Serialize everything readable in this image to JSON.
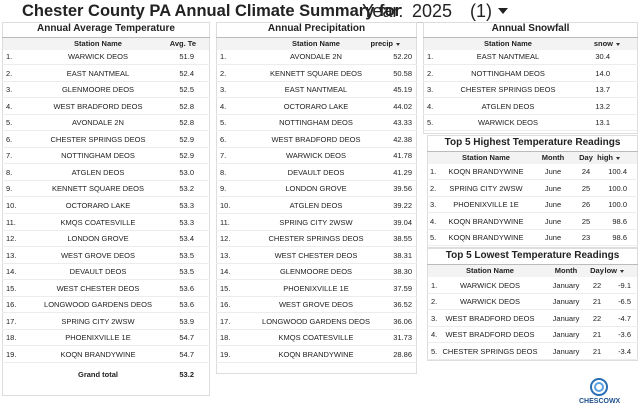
{
  "header": {
    "title": "Chester County PA Annual Climate Summary for",
    "selector_label": "Year:",
    "selector_value": "2025",
    "selector_count": "(1)"
  },
  "tables": [
    {
      "title": "Annual Average Temperature",
      "columns": [
        "Station Name",
        "Avg. Te"
      ],
      "rows": [
        [
          "1.",
          "WARWICK DEOS",
          "51.9"
        ],
        [
          "2.",
          "EAST NANTMEAL",
          "52.4"
        ],
        [
          "3.",
          "GLENMOORE DEOS",
          "52.5"
        ],
        [
          "4.",
          "WEST BRADFORD DEOS",
          "52.8"
        ],
        [
          "5.",
          "AVONDALE 2N",
          "52.8"
        ],
        [
          "6.",
          "CHESTER SPRINGS DEOS",
          "52.9"
        ],
        [
          "7.",
          "NOTTINGHAM DEOS",
          "52.9"
        ],
        [
          "8.",
          "ATGLEN DEOS",
          "53.0"
        ],
        [
          "9.",
          "KENNETT SQUARE DEOS",
          "53.2"
        ],
        [
          "10.",
          "OCTORARO LAKE",
          "53.3"
        ],
        [
          "11.",
          "KMQS COATESVILLE",
          "53.3"
        ],
        [
          "12.",
          "LONDON GROVE",
          "53.4"
        ],
        [
          "13.",
          "WEST GROVE DEOS",
          "53.5"
        ],
        [
          "14.",
          "DEVAULT DEOS",
          "53.5"
        ],
        [
          "15.",
          "WEST CHESTER DEOS",
          "53.6"
        ],
        [
          "16.",
          "LONGWOOD GARDENS DEOS",
          "53.6"
        ],
        [
          "17.",
          "SPRING CITY 2WSW",
          "53.9"
        ],
        [
          "18.",
          "PHOENIXVILLE 1E",
          "54.7"
        ],
        [
          "19.",
          "KOQN BRANDYWINE",
          "54.7"
        ]
      ],
      "total": [
        "Grand total",
        "53.2"
      ]
    },
    {
      "title": "Annual Precipitation",
      "columns": [
        "Station Name",
        "precip"
      ],
      "rows": [
        [
          "1.",
          "AVONDALE 2N",
          "52.20"
        ],
        [
          "2.",
          "KENNETT SQUARE DEOS",
          "50.58"
        ],
        [
          "3.",
          "EAST NANTMEAL",
          "45.19"
        ],
        [
          "4.",
          "OCTORARO LAKE",
          "44.02"
        ],
        [
          "5.",
          "NOTTINGHAM DEOS",
          "43.33"
        ],
        [
          "6.",
          "WEST BRADFORD DEOS",
          "42.38"
        ],
        [
          "7.",
          "WARWICK DEOS",
          "41.78"
        ],
        [
          "8.",
          "DEVAULT DEOS",
          "41.29"
        ],
        [
          "9.",
          "LONDON GROVE",
          "39.56"
        ],
        [
          "10.",
          "ATGLEN DEOS",
          "39.22"
        ],
        [
          "11.",
          "SPRING CITY 2WSW",
          "39.04"
        ],
        [
          "12.",
          "CHESTER SPRINGS DEOS",
          "38.55"
        ],
        [
          "13.",
          "WEST CHESTER DEOS",
          "38.31"
        ],
        [
          "14.",
          "GLENMOORE DEOS",
          "38.30"
        ],
        [
          "15.",
          "PHOENIXVILLE 1E",
          "37.59"
        ],
        [
          "16.",
          "WEST GROVE DEOS",
          "36.52"
        ],
        [
          "17.",
          "LONGWOOD GARDENS DEOS",
          "36.06"
        ],
        [
          "18.",
          "KMQS COATESVILLE",
          "31.73"
        ],
        [
          "19.",
          "KOQN BRANDYWINE",
          "28.86"
        ]
      ]
    },
    {
      "title": "Annual Snowfall",
      "columns": [
        "Station Name",
        "snow"
      ],
      "rows": [
        [
          "1.",
          "EAST NANTMEAL",
          "30.4"
        ],
        [
          "2.",
          "NOTTINGHAM DEOS",
          "14.0"
        ],
        [
          "3.",
          "CHESTER SPRINGS DEOS",
          "13.7"
        ],
        [
          "4.",
          "ATGLEN DEOS",
          "13.2"
        ],
        [
          "5.",
          "WARWICK DEOS",
          "13.1"
        ]
      ]
    },
    {
      "title": "Top 5 Highest Temperature Readings",
      "columns": [
        "Station Name",
        "Month",
        "Day",
        "high"
      ],
      "rows": [
        [
          "1.",
          "KOQN BRANDYWINE",
          "June",
          "24",
          "100.4"
        ],
        [
          "2.",
          "SPRING CITY 2WSW",
          "June",
          "25",
          "100.0"
        ],
        [
          "3.",
          "PHOENIXVILLE 1E",
          "June",
          "26",
          "100.0"
        ],
        [
          "4.",
          "KOQN BRANDYWINE",
          "June",
          "25",
          "98.6"
        ],
        [
          "5.",
          "KOQN BRANDYWINE",
          "June",
          "23",
          "98.6"
        ]
      ]
    },
    {
      "title": "Top 5 Lowest Temperature Readings",
      "columns": [
        "Station Name",
        "Month",
        "Day",
        "low"
      ],
      "rows": [
        [
          "1.",
          "WARWICK DEOS",
          "January",
          "22",
          "-9.1"
        ],
        [
          "2.",
          "WARWICK DEOS",
          "January",
          "21",
          "-6.5"
        ],
        [
          "3.",
          "WEST BRADFORD DEOS",
          "January",
          "22",
          "-4.7"
        ],
        [
          "4.",
          "WEST BRADFORD DEOS",
          "January",
          "21",
          "-3.6"
        ],
        [
          "5.",
          "CHESTER SPRINGS DEOS",
          "January",
          "21",
          "-3.4"
        ]
      ]
    }
  ],
  "logo": {
    "text": "CHESCOWX"
  }
}
